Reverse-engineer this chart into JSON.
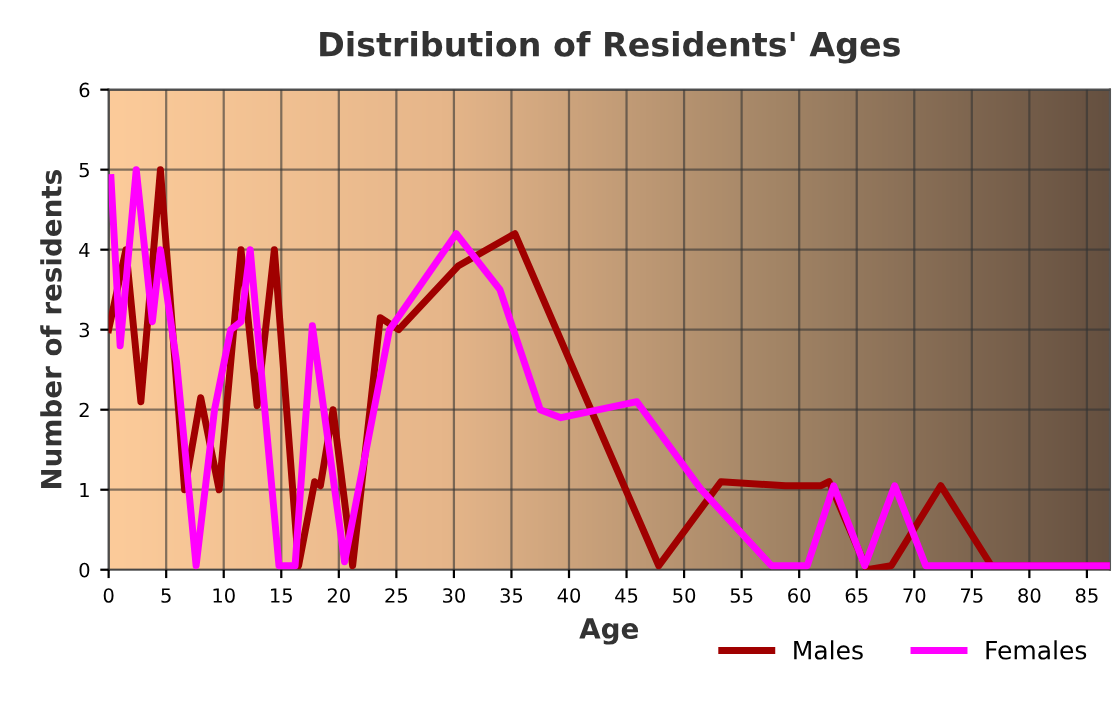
{
  "chart_data": {
    "type": "line",
    "title": "Distribution of Residents' Ages",
    "xlabel": "Age",
    "ylabel": "Number of residents",
    "xlim": [
      0,
      87
    ],
    "ylim": [
      0,
      6
    ],
    "xticks": [
      0,
      5,
      10,
      15,
      20,
      25,
      30,
      35,
      40,
      45,
      50,
      55,
      60,
      65,
      70,
      75,
      80,
      85
    ],
    "yticks": [
      0,
      1,
      2,
      3,
      4,
      5,
      6
    ],
    "grid": true,
    "legend": "bottom",
    "series": [
      {
        "name": "Males",
        "color": "#a00000",
        "x": [
          0,
          1.5,
          2.8,
          4.5,
          6.6,
          8,
          9.6,
          11.5,
          12.9,
          14.4,
          16.5,
          17.9,
          18.4,
          19.5,
          21.2,
          23.6,
          25.2,
          30.4,
          35.3,
          41,
          47.8,
          53.2,
          58.8,
          61.9,
          62.6,
          65.9,
          68,
          72.3,
          76.7,
          87
        ],
        "values": [
          3,
          4,
          2.1,
          5,
          1,
          2.15,
          1,
          4,
          2.05,
          4,
          0.05,
          1.1,
          1.05,
          2,
          0.05,
          3.15,
          3,
          3.8,
          4.2,
          2.3,
          0.05,
          1.1,
          1.05,
          1.05,
          1.1,
          0,
          0.05,
          1.05,
          0.05,
          0.05
        ]
      },
      {
        "name": "Females",
        "color": "#ff00ff",
        "x": [
          0.2,
          1,
          2.4,
          3.8,
          4.5,
          5.9,
          7.6,
          9.2,
          10.6,
          11.5,
          12.3,
          14.8,
          16.2,
          17.7,
          20.5,
          24.4,
          30.2,
          34,
          37.5,
          39.3,
          45.9,
          51.5,
          57.6,
          60.7,
          63,
          65.7,
          68.3,
          71,
          87
        ],
        "values": [
          4.9,
          2.8,
          5,
          3.1,
          4,
          2.6,
          0.05,
          2,
          3,
          3.1,
          4,
          0.05,
          0.05,
          3.05,
          0.1,
          3,
          4.2,
          3.5,
          2,
          1.9,
          2.1,
          1,
          0.05,
          0.05,
          1.05,
          0.05,
          1.05,
          0.05,
          0.05
        ]
      }
    ]
  }
}
